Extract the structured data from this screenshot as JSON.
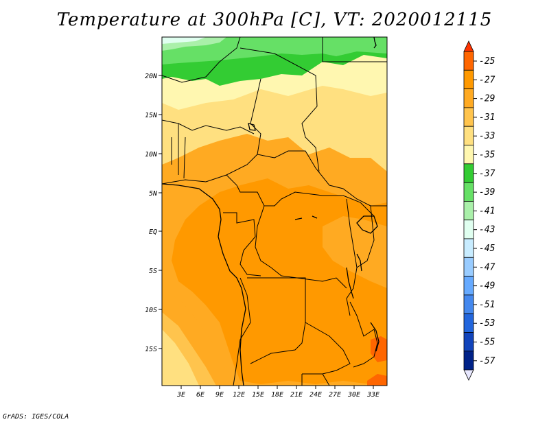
{
  "title": "Temperature at 300hPa [C], VT: 2020012115",
  "credit": "GrADS: IGES/COLA",
  "lat_labels": [
    "20N",
    "15N",
    "10N",
    "5N",
    "EQ",
    "5S",
    "10S",
    "15S"
  ],
  "lon_labels": [
    "3E",
    "6E",
    "9E",
    "12E",
    "15E",
    "18E",
    "21E",
    "24E",
    "27E",
    "30E",
    "33E"
  ],
  "colorbar": {
    "levels": [
      "-25",
      "-27",
      "-29",
      "-31",
      "-33",
      "-35",
      "-37",
      "-39",
      "-41",
      "-43",
      "-45",
      "-47",
      "-49",
      "-51",
      "-53",
      "-55",
      "-57"
    ],
    "colors": [
      "#ff3300",
      "#ff6600",
      "#ff9900",
      "#ffaa22",
      "#ffc44d",
      "#ffe080",
      "#fff7b0",
      "#33cc33",
      "#66e066",
      "#aaf0aa",
      "#e0fff0",
      "#c8ecff",
      "#99ccff",
      "#66aaff",
      "#4488ee",
      "#2266dd",
      "#1144bb",
      "#002288",
      "#e8e8ff"
    ]
  },
  "map_colors": {
    "c_27": "#ff9900",
    "c_29": "#ffaa22",
    "c_31": "#ffc44d",
    "c_33": "#ffe080",
    "c_35": "#fff7b0",
    "c_37": "#33cc33",
    "c_39": "#66e066",
    "c_41": "#aaf0aa",
    "c_43": "#e0fff0",
    "c_25": "#ff6600"
  }
}
